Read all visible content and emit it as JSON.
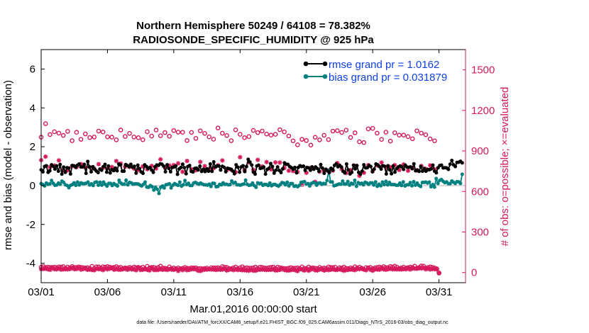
{
  "chart_data": {
    "type": "line",
    "title_line1": "Northern Hemisphere 50249 / 64108 = 78.382%",
    "title_line2": "RADIOSONDE_SPECIFIC_HUMIDITY @ 925 hPa",
    "xlabel": "Mar.01,2016 00:00:00 start",
    "ylabel_left": "rmse and bias (model - observation)",
    "ylabel_right": "# of obs: o=possible; ×=evaluated",
    "footnote": "data file: /Users/raeder/DAI/ATM_forcXX/CAM6_setup/f.e21.FHIST_BGC.f09_025.CAM6assim.011/Diags_NTrS_2016-03/obs_diag_output.nc",
    "x_range_days": [
      0,
      32
    ],
    "x_ticks": [
      {
        "day": 0,
        "label": "03/01"
      },
      {
        "day": 5,
        "label": "03/06"
      },
      {
        "day": 10,
        "label": "03/11"
      },
      {
        "day": 15,
        "label": "03/16"
      },
      {
        "day": 20,
        "label": "03/21"
      },
      {
        "day": 25,
        "label": "03/26"
      },
      {
        "day": 30,
        "label": "03/31"
      }
    ],
    "y_left_range": [
      -5,
      7
    ],
    "y_left_ticks": [
      -4,
      -2,
      0,
      2,
      4,
      6
    ],
    "y_right_range": [
      -75,
      1650
    ],
    "y_right_ticks": [
      0,
      300,
      600,
      900,
      1200,
      1500
    ],
    "legend": [
      {
        "label": "rmse grand pr = 1.0162",
        "color": "#000000"
      },
      {
        "label": "bias grand pr = 0.031879",
        "color": "#008080"
      }
    ],
    "colors": {
      "rmse": "#000000",
      "bias": "#008080",
      "obs": "#d6185c",
      "legend_text": "#1040e0"
    },
    "series": {
      "rmse": [
        0.81,
        0.71,
        0.98,
        1.02,
        0.68,
        0.76,
        1.07,
        0.99,
        0.85,
        1.01,
        0.74,
        1.08,
        0.59,
        0.95,
        0.68,
        0.92,
        0.9,
        0.6,
        1.03,
        1.02,
        0.94,
        1.05,
        1.11,
        0.96,
        0.96,
        1.09,
        0.63,
        1.24,
        0.96,
        0.71,
        0.97,
        0.84,
        0.75,
        0.67,
        0.85,
        0.79,
        0.97,
        1.09,
        0.69,
        1.01,
        0.65,
        0.82,
        0.77,
        0.9,
        0.76,
        1.11,
        1.06,
        0.74,
        0.74,
        1.08,
        1.03,
        0.97,
        1.09,
        0.94,
        0.99,
        0.64,
        1.05,
        0.87,
        0.7,
        0.63,
        1.07,
        0.98,
        0.88,
        0.93,
        0.8,
        0.68,
        0.97,
        1.06,
        1.04,
        1.12,
        1.1,
        1.0,
        0.71,
        1.07,
        0.88,
        0.71,
        0.93,
        0.96,
        1.01,
        0.58,
        0.86,
        0.93,
        1.1,
        0.92,
        0.61,
        0.98,
        1.03,
        0.73,
        0.7,
        0.88,
        0.9,
        0.81,
        1.0,
        0.73,
        0.84,
        0.72,
        0.86,
        0.74,
        1.11,
        0.73,
        1.22,
        0.95,
        1.01,
        1.01,
        0.8,
        0.99,
        0.94,
        0.71,
        0.89,
        0.87,
        0.84,
        0.75,
        0.61,
        1.07,
        0.94,
        0.69,
        0.96,
        1.02,
        0.72,
        0.98,
        1.35,
        1.21,
        1.06,
        0.69,
        0.59,
        1.01,
        1.05,
        0.88,
        0.91,
        0.95,
        0.59,
        0.83,
        0.89,
        1.13,
        0.98,
        0.64,
        0.79,
        0.96,
        0.78,
        0.67,
        0.86,
        1.17,
        1.09,
        1.09,
        0.98,
        0.92,
        0.84,
        0.93,
        0.66,
        0.93,
        1.02,
        0.98,
        1.0,
        0.78,
        0.93,
        0.91,
        0.79,
        0.96,
        0.84,
        0.96,
        0.88,
        0.73,
        1.08,
        0.9,
        0.63,
        0.84,
        0.75,
        0.67,
        0.89,
        0.79,
        1.04,
        1.12,
        0.97,
        1.04,
        0.96,
        0.73,
        0.65,
        1.11,
        0.81,
        0.6,
        0.68,
        1.05,
        0.86,
        1.03,
        0.68,
        0.59,
        0.74,
        1.07,
        0.91,
        0.92,
        1.03,
        0.98,
        0.71,
        0.85,
        1.11,
        1.07,
        0.98,
        0.85,
        1.02,
        0.99,
        0.6,
        1.02,
        0.81,
        0.61,
        1.01,
        0.69,
        0.87,
        0.96,
        1.01,
        0.96,
        0.83,
        1.05,
        0.95,
        0.94,
        0.96,
        0.87,
        1.12,
        0.76,
        0.8,
        0.73,
        0.98,
        0.74,
        0.88,
        0.74,
        0.82,
        0.82,
        0.86,
        1.05,
        0.74,
        0.66,
        0.92,
        1.03,
        1.05,
        0.91,
        0.92,
        0.91,
        0.83,
        1.1,
        1.29,
        1.07,
        0.98,
        1.19,
        1.2,
        1.25,
        1.17
      ],
      "bias": [
        0.1,
        0.05,
        -0.02,
        0.13,
        0.06,
        0.09,
        0.26,
        0.12,
        0.01,
        0.03,
        0.13,
        0.07,
        0.23,
        0.16,
        0.04,
        0.0,
        -0.11,
        0.01,
        0.05,
        0.14,
        0.01,
        0.18,
        0.03,
        0.14,
        0.1,
        0.1,
        0.12,
        0.18,
        0.03,
        0.09,
        0.0,
        0.16,
        0.19,
        0.02,
        0.17,
        0.02,
        0.18,
        0.06,
        -0.03,
        0.11,
        0.11,
        0.0,
        0.1,
        0.04,
        -0.02,
        0.27,
        0.13,
        0.07,
        0.07,
        0.28,
        0.04,
        0.16,
        0.14,
        0.07,
        0.09,
        0.09,
        0.08,
        0.03,
        -0.02,
        0.06,
        0.18,
        -0.08,
        -0.09,
        0.0,
        -0.06,
        -0.23,
        -0.09,
        -0.19,
        -0.41,
        -0.09,
        -0.02,
        -0.12,
        0.04,
        0.06,
        0.09,
        -0.12,
        0.02,
        0.1,
        0.05,
        0.01,
        0.18,
        -0.03,
        0.04,
        0.26,
        0.05,
        0.12,
        -0.0,
        -0.0,
        0.13,
        0.16,
        0.11,
        0.07,
        0.13,
        0.08,
        0.04,
        0.04,
        0.02,
        0.07,
        -0.05,
        0.12,
        0.11,
        -0.06,
        -0.05,
        0.06,
        0.04,
        0.14,
        0.06,
        0.07,
        0.04,
        0.05,
        0.24,
        0.13,
        0.16,
        0.04,
        0.04,
        0.02,
        0.06,
        0.08,
        0.28,
        0.06,
        0.01,
        0.03,
        0.13,
        -0.0,
        -0.09,
        0.14,
        0.1,
        0.12,
        0.01,
        0.06,
        0.05,
        0.0,
        0.13,
        -0.01,
        0.05,
        0.06,
        0.01,
        -0.03,
        0.05,
        0.15,
        0.13,
        0.04,
        0.17,
        -0.02,
        0.1,
        0.1,
        -0.04,
        -0.01,
        -0.06,
        0.01,
        0.16,
        0.18,
        0.2,
        0.08,
        0.1,
        -0.02,
        0.11,
        0.16,
        0.14,
        0.02,
        0.12,
        0.14,
        0.06,
        0.11,
        0.09,
        0.26,
        0.78,
        0.19,
        0.19,
        -0.01,
        0.01,
        0.05,
        0.08,
        0.07,
        0.23,
        0.08,
        0.08,
        0.21,
        0.02,
        0.12,
        0.08,
        0.27,
        -0.04,
        0.15,
        0.09,
        0.12,
        0.04,
        0.17,
        0.13,
        0.06,
        0.14,
        0.14,
        0.03,
        0.19,
        -0.04,
        0.07,
        -0.01,
        0.18,
        0.05,
        0.22,
        0.04,
        0.16,
        0.05,
        0.05,
        0.05,
        0.01,
        0.02,
        0.13,
        -0.0,
        0.19,
        -0.02,
        0.04,
        0.04,
        0.15,
        -0.01,
        0.2,
        0.02,
        0.13,
        0.01,
        -0.05,
        0.16,
        0.16,
        0.18,
        0.13,
        0.18,
        -0.06,
        0.05,
        -0.08,
        0.36,
        0.11,
        0.26,
        0.31,
        0.22,
        0.15,
        0.19,
        0.1,
        0.1,
        0.24,
        0.17,
        0.11,
        0.2,
        0.19,
        0.11,
        0.58
      ],
      "obs_possible_12h": [
        1002,
        1102,
        1021,
        1042,
        1032,
        1015,
        1045,
        976,
        1038,
        986,
        1026,
        999,
        1003,
        1047,
        1040,
        1004,
        1002,
        982,
        1055,
        1007,
        1030,
        1003,
        998,
        983,
        1042,
        1010,
        1055,
        1013,
        1036,
        1009,
        1051,
        1039,
        1038,
        977,
        1037,
        993,
        1049,
        1030,
        1004,
        987,
        1070,
        1031,
        1014,
        976,
        1056,
        1023,
        998,
        1006,
        1052,
        1036,
        1047,
        1025,
        1017,
        1023,
        1057,
        1041,
        1011,
        975,
        945,
        986,
        977,
        943,
        1001,
        982,
        1016,
        984,
        1047,
        1050,
        1037,
        1054,
        1000,
        1034,
        968,
        962,
        1063,
        1067,
        1032,
        985,
        1039,
        973,
        1035,
        1017,
        1017,
        1006,
        990,
        1049,
        1032,
        1020,
        989,
        975
      ],
      "obs_evaluated_12h": [
        832,
        858,
        780,
        792,
        830,
        758,
        757,
        787,
        780,
        803,
        778,
        780,
        770,
        802,
        775,
        770,
        781,
        825,
        807,
        783,
        782,
        770,
        758,
        785,
        765,
        789,
        770,
        838,
        777,
        792,
        795,
        808,
        746,
        826,
        765,
        757,
        819,
        788,
        767,
        772,
        794,
        830,
        759,
        761,
        743,
        854,
        759,
        815,
        760,
        834,
        785,
        818,
        763,
        815,
        814,
        774,
        754,
        751,
        744,
        650,
        739,
        775,
        671,
        747,
        755,
        756,
        755,
        810,
        766,
        737,
        758,
        790,
        716,
        739,
        795,
        752,
        793,
        814,
        779,
        780,
        795,
        759,
        800,
        754,
        774,
        757,
        789,
        767,
        793,
        764
      ],
      "obs_possible_6h": [
        40,
        45,
        37,
        40,
        38,
        38,
        40,
        36,
        42,
        41,
        44,
        32,
        41,
        35,
        45,
        38,
        38,
        42,
        39,
        37,
        34,
        36,
        31,
        46,
        30,
        43,
        42,
        34,
        43,
        40,
        45,
        40,
        37,
        39,
        44,
        37,
        39,
        30,
        35,
        32,
        39,
        33,
        41,
        37,
        39,
        33,
        40,
        29,
        46,
        34,
        38,
        39,
        32,
        38,
        48,
        34,
        32,
        28,
        42,
        30,
        34,
        29,
        34,
        29,
        31,
        38,
        32,
        30,
        35,
        34,
        35,
        29,
        30,
        28,
        30,
        33,
        26,
        36,
        35,
        35,
        36,
        33,
        44,
        40,
        38,
        30,
        29,
        35,
        41,
        28,
        36,
        43,
        33,
        36,
        33,
        33,
        35,
        41,
        31,
        40,
        39,
        34,
        32,
        36,
        39,
        41,
        31,
        40,
        36,
        33,
        30,
        30,
        32,
        37,
        32,
        33,
        35,
        31,
        42,
        31,
        30,
        41,
        32,
        35,
        32,
        30,
        38,
        30,
        34,
        31,
        41,
        38,
        37,
        40,
        25,
        36,
        34,
        40,
        32,
        29,
        35,
        30,
        43,
        34,
        40,
        32,
        25,
        37,
        35,
        38,
        28,
        35,
        38,
        41,
        37,
        44,
        37,
        37,
        45,
        41,
        47,
        40,
        31,
        34,
        40,
        32,
        37,
        41,
        37,
        47,
        32,
        38,
        49,
        48,
        32,
        38,
        42,
        39,
        34,
        28,
        -2
      ],
      "obs_evaluated_6h": [
        25,
        27,
        29,
        25,
        20,
        33,
        25,
        24,
        30,
        22,
        24,
        25,
        24,
        26,
        34,
        25,
        26,
        32,
        22,
        26,
        29,
        20,
        23,
        19,
        17,
        28,
        25,
        25,
        18,
        29,
        24,
        28,
        33,
        21,
        26,
        21,
        21,
        25,
        29,
        21,
        28,
        23,
        24,
        17,
        33,
        19,
        21,
        26,
        20,
        16,
        33,
        19,
        19,
        20,
        25,
        20,
        24,
        19,
        25,
        22,
        20,
        26,
        12,
        27,
        18,
        26,
        17,
        20,
        25,
        25,
        24,
        14,
        12,
        18,
        22,
        22,
        25,
        23,
        23,
        19,
        23,
        21,
        22,
        27,
        15,
        21,
        25,
        18,
        24,
        19,
        21,
        17,
        18,
        16,
        14,
        21,
        14,
        14,
        20,
        21,
        23,
        21,
        19,
        21,
        20,
        25,
        16,
        17,
        20,
        28,
        19,
        16,
        15,
        18,
        22,
        17,
        11,
        24,
        23,
        15,
        24,
        14,
        22,
        27,
        17,
        16,
        23,
        23,
        15,
        21,
        18,
        21,
        25,
        19,
        20,
        25,
        19,
        14,
        18,
        20,
        23,
        21,
        18,
        26,
        25,
        30,
        23,
        17,
        30,
        21,
        14,
        24,
        23,
        21,
        29,
        24,
        21,
        25,
        28,
        24,
        25,
        24,
        24,
        23,
        26,
        24,
        29,
        23,
        30,
        29,
        28,
        33,
        30,
        35,
        24,
        30,
        23,
        27,
        25,
        24,
        -6
      ]
    }
  }
}
